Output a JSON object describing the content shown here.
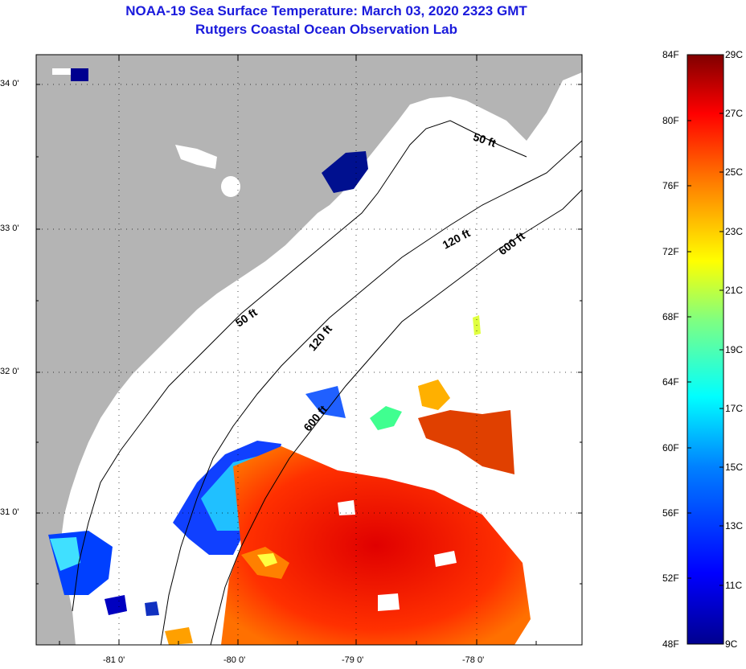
{
  "title": {
    "line1": "NOAA-19 Sea Surface Temperature:  March 03, 2020 2323 GMT",
    "line2": "Rutgers Coastal Ocean Observation Lab"
  },
  "map": {
    "latitude_labels": [
      "34 0'",
      "33 0'",
      "32 0'",
      "31 0'"
    ],
    "longitude_labels": [
      "-81 0'",
      "-80 0'",
      "-79 0'",
      "-78 0'"
    ],
    "contour_labels": [
      "50 ft",
      "120 ft",
      "600 ft",
      "50 ft",
      "120 ft",
      "600 ft"
    ],
    "land_color": "#b4b4b4",
    "no_data_color": "#ffffff"
  },
  "colorbar": {
    "fahrenheit_labels": [
      "84F",
      "80F",
      "76F",
      "72F",
      "68F",
      "64F",
      "60F",
      "56F",
      "52F",
      "48F"
    ],
    "celsius_labels": [
      "29C",
      "27C",
      "25C",
      "23C",
      "21C",
      "19C",
      "17C",
      "15C",
      "13C",
      "11C",
      "9C"
    ],
    "range_c": [
      9,
      29
    ],
    "range_f": [
      48,
      84
    ],
    "colors": [
      "#00008f",
      "#0000ff",
      "#0080ff",
      "#00ffff",
      "#80ff80",
      "#ffff00",
      "#ff8000",
      "#ff0000",
      "#800000"
    ]
  }
}
